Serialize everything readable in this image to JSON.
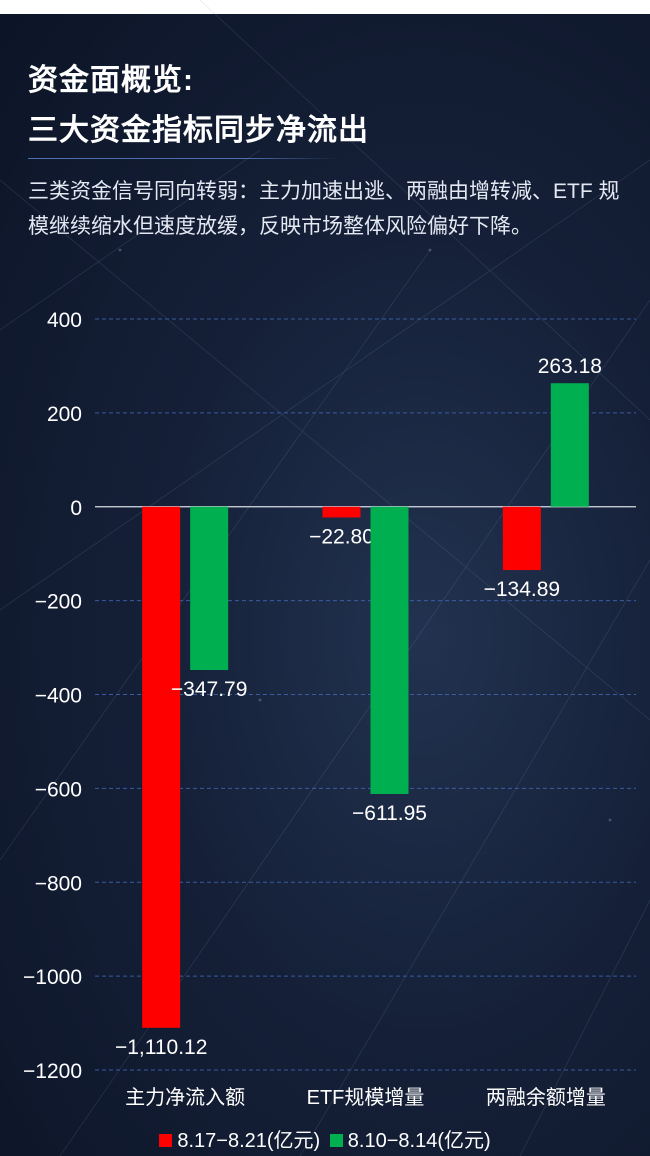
{
  "page": {
    "title_line1": "资金面概览:",
    "title_line2": "三大资金指标同步净流出",
    "subtitle": "三类资金信号同向转弱：主力加速出逃、两融由增转减、ETF 规模继续缩水但速度放缓，反映市场整体风险偏好下降。"
  },
  "chart_data": {
    "type": "bar",
    "categories": [
      "主力净流入额",
      "ETF规模增量",
      "两融余额增量"
    ],
    "series": [
      {
        "name": "8.17−8.21(亿元)",
        "values": [
          -1110.12,
          -22.8,
          -134.89
        ],
        "labels": [
          "−1,110.12",
          "−22.80",
          "−134.89"
        ],
        "color": "#ff0000"
      },
      {
        "name": "8.10−8.14(亿元)",
        "values": [
          -347.79,
          -611.95,
          263.18
        ],
        "labels": [
          "−347.79",
          "−611.95",
          "263.18"
        ],
        "color": "#00b050"
      }
    ],
    "ylim": [
      -1200,
      400
    ],
    "yticks": [
      400,
      200,
      0,
      -200,
      -400,
      -600,
      -800,
      -1000,
      -1200
    ],
    "ytick_labels": [
      "400",
      "200",
      "0",
      "−200",
      "−400",
      "−600",
      "−800",
      "−1000",
      "−1200"
    ],
    "grid": true,
    "legend": "bottom",
    "xlabel": "",
    "ylabel": ""
  }
}
